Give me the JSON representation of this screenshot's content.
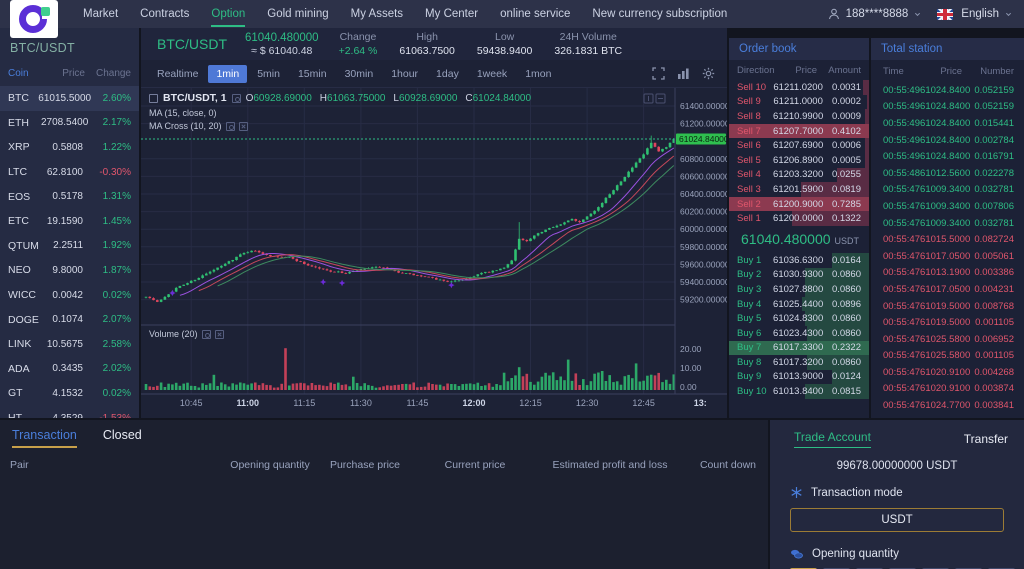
{
  "colors": {
    "green": "#2ebd85",
    "red": "#e0566c",
    "blue": "#4a7edb",
    "gold": "#c8a04a",
    "candle_up": "#2fbf71",
    "candle_down": "#e0455e",
    "ma_fast": "#c5485a",
    "ma_mid": "#9b51e0",
    "ma_slow": "#3d8b5f",
    "price_tag_bg": "#2fbf4f"
  },
  "nav": {
    "items": [
      {
        "label": "Market",
        "active": false
      },
      {
        "label": "Contracts",
        "active": false
      },
      {
        "label": "Option",
        "active": true
      },
      {
        "label": "Gold mining",
        "active": false
      },
      {
        "label": "My Assets",
        "active": false
      },
      {
        "label": "My Center",
        "active": false
      },
      {
        "label": "online service",
        "active": false
      },
      {
        "label": "New currency subscription",
        "active": false
      }
    ],
    "user": "188****8888",
    "language": "English"
  },
  "market_header": {
    "left_pair": "BTC/USDT",
    "pair": "BTC/USDT",
    "price": "61040.480000",
    "approx": "≈ $ 61040.48",
    "stats": [
      {
        "label": "Change",
        "value": "+2.64 %",
        "up": true
      },
      {
        "label": "High",
        "value": "61063.7500",
        "up": false
      },
      {
        "label": "Low",
        "value": "59438.9400",
        "up": false
      },
      {
        "label": "24H Volume",
        "value": "326.1831 BTC",
        "up": false
      }
    ]
  },
  "sidebar": {
    "headers": [
      "Coin",
      "Price",
      "Change"
    ],
    "coins": [
      {
        "s": "BTC",
        "p": "61015.5000",
        "c": "2.60%",
        "dir": "up",
        "sel": true
      },
      {
        "s": "ETH",
        "p": "2708.5400",
        "c": "2.17%",
        "dir": "up",
        "sel": false
      },
      {
        "s": "XRP",
        "p": "0.5808",
        "c": "1.22%",
        "dir": "up",
        "sel": false
      },
      {
        "s": "LTC",
        "p": "62.8100",
        "c": "-0.30%",
        "dir": "down",
        "sel": false
      },
      {
        "s": "EOS",
        "p": "0.5178",
        "c": "1.31%",
        "dir": "up",
        "sel": false
      },
      {
        "s": "ETC",
        "p": "19.1590",
        "c": "1.45%",
        "dir": "up",
        "sel": false
      },
      {
        "s": "QTUM",
        "p": "2.2511",
        "c": "1.92%",
        "dir": "up",
        "sel": false
      },
      {
        "s": "NEO",
        "p": "9.8000",
        "c": "1.87%",
        "dir": "up",
        "sel": false
      },
      {
        "s": "WICC",
        "p": "0.0042",
        "c": "0.02%",
        "dir": "up",
        "sel": false
      },
      {
        "s": "DOGE",
        "p": "0.1074",
        "c": "2.07%",
        "dir": "up",
        "sel": false
      },
      {
        "s": "LINK",
        "p": "10.5675",
        "c": "2.58%",
        "dir": "up",
        "sel": false
      },
      {
        "s": "ADA",
        "p": "0.3435",
        "c": "2.02%",
        "dir": "up",
        "sel": false
      },
      {
        "s": "GT",
        "p": "4.1532",
        "c": "0.02%",
        "dir": "up",
        "sel": false
      },
      {
        "s": "HT",
        "p": "4.3529",
        "c": "-1.53%",
        "dir": "down",
        "sel": false
      }
    ]
  },
  "chart": {
    "timeframes": [
      "Realtime",
      "1min",
      "5min",
      "15min",
      "30min",
      "1hour",
      "1day",
      "1week",
      "1mon"
    ],
    "active_timeframe": "1min",
    "legend_symbol": "BTC/USDT, 1",
    "ohlc": [
      {
        "k": "O",
        "v": "60928.69000"
      },
      {
        "k": "H",
        "v": "61063.75000"
      },
      {
        "k": "L",
        "v": "60928.69000"
      },
      {
        "k": "C",
        "v": "61024.84000"
      }
    ],
    "ma_label": "MA (15, close, 0)",
    "ma_cross_label": "MA Cross (10, 20)",
    "volume_label": "Volume (20)"
  },
  "chart_data": {
    "type": "candlestick",
    "symbol": "BTC/USDT",
    "interval": "1min",
    "current_price": 61024.84,
    "current_price_label": "61024.84000",
    "price_axis_ticks": [
      61400,
      61200,
      60800,
      60600,
      60400,
      60200,
      60000,
      59800,
      59600,
      59400,
      59200
    ],
    "volume_axis_ticks": [
      "20.00",
      "10.00",
      "0.00"
    ],
    "x_labels": [
      {
        "m": 12,
        "label": "10:45",
        "bold": false
      },
      {
        "m": 27,
        "label": "11:00",
        "bold": true
      },
      {
        "m": 42,
        "label": "11:15",
        "bold": false
      },
      {
        "m": 57,
        "label": "11:30",
        "bold": false
      },
      {
        "m": 72,
        "label": "11:45",
        "bold": false
      },
      {
        "m": 87,
        "label": "12:00",
        "bold": true
      },
      {
        "m": 102,
        "label": "12:15",
        "bold": false
      },
      {
        "m": 117,
        "label": "12:30",
        "bold": false
      },
      {
        "m": 132,
        "label": "12:45",
        "bold": false
      },
      {
        "m": 147,
        "label": "13:",
        "bold": true
      }
    ],
    "n_candles": 141,
    "price_anchors": [
      [
        0,
        59240
      ],
      [
        3,
        59170
      ],
      [
        8,
        59330
      ],
      [
        14,
        59450
      ],
      [
        20,
        59580
      ],
      [
        25,
        59710
      ],
      [
        28,
        59760
      ],
      [
        33,
        59700
      ],
      [
        38,
        59680
      ],
      [
        43,
        59590
      ],
      [
        48,
        59530
      ],
      [
        53,
        59500
      ],
      [
        58,
        59550
      ],
      [
        62,
        59570
      ],
      [
        66,
        59520
      ],
      [
        71,
        59480
      ],
      [
        76,
        59440
      ],
      [
        81,
        59400
      ],
      [
        85,
        59440
      ],
      [
        89,
        59500
      ],
      [
        92,
        59520
      ],
      [
        95,
        59560
      ],
      [
        97,
        59650
      ],
      [
        99,
        59890
      ],
      [
        101,
        59860
      ],
      [
        104,
        59950
      ],
      [
        107,
        60020
      ],
      [
        110,
        60050
      ],
      [
        113,
        60120
      ],
      [
        115,
        60080
      ],
      [
        117,
        60150
      ],
      [
        120,
        60250
      ],
      [
        123,
        60400
      ],
      [
        126,
        60550
      ],
      [
        129,
        60700
      ],
      [
        132,
        60850
      ],
      [
        134,
        60980
      ],
      [
        136,
        60880
      ],
      [
        138,
        60930
      ],
      [
        140,
        61024.84
      ]
    ],
    "wick_overrides": {
      "99": 60080,
      "134": 61063.75
    },
    "volume_spikes": {
      "18": 8,
      "37": 22,
      "55": 7,
      "99": 12,
      "112": 16,
      "121": 10,
      "130": 14,
      "136": 9
    },
    "ma_windows": {
      "fast": 15,
      "mid": 10,
      "slow": 20
    },
    "cross_markers": [
      [
        7,
        59275
      ],
      [
        47,
        59400
      ],
      [
        52,
        59388
      ],
      [
        81,
        59365
      ]
    ]
  },
  "order_book": {
    "title": "Order book",
    "headers": [
      "Direction",
      "Price",
      "Amount"
    ],
    "sells": [
      {
        "d": "Sell 10",
        "p": "61211.0200",
        "a": "0.0031",
        "bar": 0.05,
        "flash": false
      },
      {
        "d": "Sell 9",
        "p": "61211.0000",
        "a": "0.0002",
        "bar": 0.02,
        "flash": false
      },
      {
        "d": "Sell 8",
        "p": "61210.9900",
        "a": "0.0009",
        "bar": 0.03,
        "flash": false
      },
      {
        "d": "Sell 7",
        "p": "61207.7000",
        "a": "0.4102",
        "bar": 1,
        "flash": true
      },
      {
        "d": "Sell 6",
        "p": "61207.6900",
        "a": "0.0006",
        "bar": 0.03,
        "flash": false
      },
      {
        "d": "Sell 5",
        "p": "61206.8900",
        "a": "0.0005",
        "bar": 0.03,
        "flash": false
      },
      {
        "d": "Sell 4",
        "p": "61203.3200",
        "a": "0.0255",
        "bar": 0.26,
        "flash": false
      },
      {
        "d": "Sell 3",
        "p": "61201.5900",
        "a": "0.0819",
        "bar": 0.55,
        "flash": false
      },
      {
        "d": "Sell 2",
        "p": "61200.9000",
        "a": "0.7285",
        "bar": 1,
        "flash": true
      },
      {
        "d": "Sell 1",
        "p": "61200.0000",
        "a": "0.1322",
        "bar": 0.62,
        "flash": false
      }
    ],
    "mid": {
      "price": "61040.480000",
      "unit": "USDT"
    },
    "buys": [
      {
        "d": "Buy 1",
        "p": "61036.6300",
        "a": "0.0164",
        "bar": 0.3,
        "flash": false
      },
      {
        "d": "Buy 2",
        "p": "61030.9300",
        "a": "0.0860",
        "bar": 0.52,
        "flash": false
      },
      {
        "d": "Buy 3",
        "p": "61027.8800",
        "a": "0.0860",
        "bar": 0.52,
        "flash": false
      },
      {
        "d": "Buy 4",
        "p": "61025.4400",
        "a": "0.0896",
        "bar": 0.54,
        "flash": false
      },
      {
        "d": "Buy 5",
        "p": "61024.8300",
        "a": "0.0860",
        "bar": 0.52,
        "flash": false
      },
      {
        "d": "Buy 6",
        "p": "61023.4300",
        "a": "0.0860",
        "bar": 0.5,
        "flash": false
      },
      {
        "d": "Buy 7",
        "p": "61017.3300",
        "a": "0.2322",
        "bar": 1,
        "flash": true
      },
      {
        "d": "Buy 8",
        "p": "61017.3200",
        "a": "0.0860",
        "bar": 0.5,
        "flash": false
      },
      {
        "d": "Buy 9",
        "p": "61013.9000",
        "a": "0.0124",
        "bar": 0.3,
        "flash": false
      },
      {
        "d": "Buy 10",
        "p": "61013.8400",
        "a": "0.0815",
        "bar": 0.52,
        "flash": false
      }
    ]
  },
  "total_station": {
    "title": "Total station",
    "headers": [
      "Time",
      "Price",
      "Number"
    ],
    "rows": [
      {
        "t": "00:55:49",
        "p": "61024.8400",
        "n": "0.052159",
        "side": "up"
      },
      {
        "t": "00:55:49",
        "p": "61024.8400",
        "n": "0.052159",
        "side": "up"
      },
      {
        "t": "00:55:49",
        "p": "61024.8400",
        "n": "0.015441",
        "side": "up"
      },
      {
        "t": "00:55:49",
        "p": "61024.8400",
        "n": "0.002784",
        "side": "up"
      },
      {
        "t": "00:55:49",
        "p": "61024.8400",
        "n": "0.016791",
        "side": "up"
      },
      {
        "t": "00:55:48",
        "p": "61012.5600",
        "n": "0.022278",
        "side": "up"
      },
      {
        "t": "00:55:47",
        "p": "61009.3400",
        "n": "0.032781",
        "side": "up"
      },
      {
        "t": "00:55:47",
        "p": "61009.3400",
        "n": "0.007806",
        "side": "up"
      },
      {
        "t": "00:55:47",
        "p": "61009.3400",
        "n": "0.032781",
        "side": "up"
      },
      {
        "t": "00:55:47",
        "p": "61015.5000",
        "n": "0.082724",
        "side": "down"
      },
      {
        "t": "00:55:47",
        "p": "61017.0500",
        "n": "0.005061",
        "side": "down"
      },
      {
        "t": "00:55:47",
        "p": "61013.1900",
        "n": "0.003386",
        "side": "down"
      },
      {
        "t": "00:55:47",
        "p": "61017.0500",
        "n": "0.004231",
        "side": "down"
      },
      {
        "t": "00:55:47",
        "p": "61019.5000",
        "n": "0.008768",
        "side": "down"
      },
      {
        "t": "00:55:47",
        "p": "61019.5000",
        "n": "0.001105",
        "side": "down"
      },
      {
        "t": "00:55:47",
        "p": "61025.5800",
        "n": "0.006952",
        "side": "down"
      },
      {
        "t": "00:55:47",
        "p": "61025.5800",
        "n": "0.001105",
        "side": "down"
      },
      {
        "t": "00:55:47",
        "p": "61020.9100",
        "n": "0.004268",
        "side": "down"
      },
      {
        "t": "00:55:47",
        "p": "61020.9100",
        "n": "0.003874",
        "side": "down"
      },
      {
        "t": "00:55:47",
        "p": "61024.7700",
        "n": "0.003841",
        "side": "down"
      }
    ]
  },
  "positions": {
    "tabs": [
      {
        "label": "Transaction",
        "active": true
      },
      {
        "label": "Closed",
        "active": false
      }
    ],
    "headers": [
      "Pair",
      "Opening quantity",
      "Purchase price",
      "Current price",
      "Estimated profit and loss",
      "Count down"
    ]
  },
  "trade_panel": {
    "title": "Trade Account",
    "transfer": "Transfer",
    "balance": "99678.00000000 USDT",
    "mode_label": "Transaction mode",
    "mode_value": "USDT",
    "qty_label": "Opening quantity",
    "preset_count": 7
  }
}
